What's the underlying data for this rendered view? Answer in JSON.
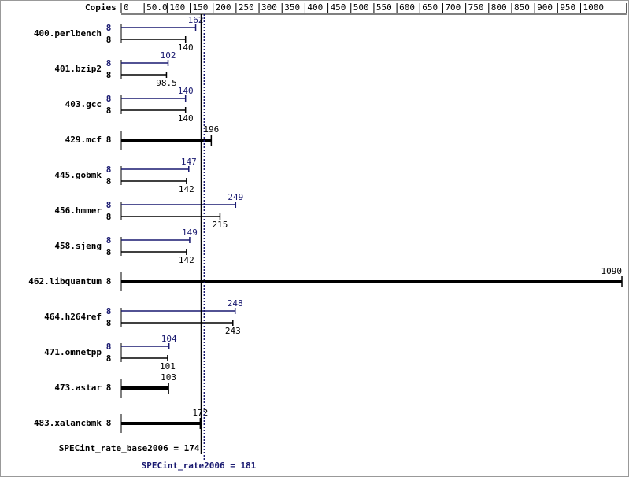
{
  "chart_data": {
    "type": "bar",
    "copies_label": "Copies",
    "categories": [
      "400.perlbench",
      "401.bzip2",
      "403.gcc",
      "429.mcf",
      "445.gobmk",
      "456.hmmer",
      "458.sjeng",
      "462.libquantum",
      "464.h264ref",
      "471.omnetpp",
      "473.astar",
      "483.xalancbmk"
    ],
    "series": [
      {
        "color": "#191970",
        "values": [
          162,
          102,
          140,
          null,
          147,
          249,
          149,
          null,
          248,
          104,
          null,
          null
        ],
        "copies": [
          8,
          8,
          8,
          null,
          8,
          8,
          8,
          null,
          8,
          8,
          null,
          null
        ]
      },
      {
        "color": "#000000",
        "values": [
          140,
          98.5,
          140,
          196,
          142,
          215,
          142,
          1090,
          243,
          101,
          103,
          172
        ],
        "copies": [
          8,
          8,
          8,
          8,
          8,
          8,
          8,
          8,
          8,
          8,
          8,
          8
        ]
      }
    ],
    "xlim": [
      0,
      1100
    ],
    "xticks": [
      0,
      {
        "value": 50,
        "label": "50.0"
      },
      100,
      150,
      200,
      250,
      300,
      350,
      400,
      450,
      500,
      550,
      600,
      650,
      700,
      750,
      800,
      850,
      900,
      950,
      1000,
      1100
    ],
    "reference_lines": [
      {
        "label": "SPECint_rate_base2006 = 174",
        "value": 174,
        "color": "#000000",
        "style": "solid"
      },
      {
        "label": "SPECint_rate2006 = 181",
        "value": 181,
        "color": "#191970",
        "style": "dotted"
      }
    ]
  }
}
